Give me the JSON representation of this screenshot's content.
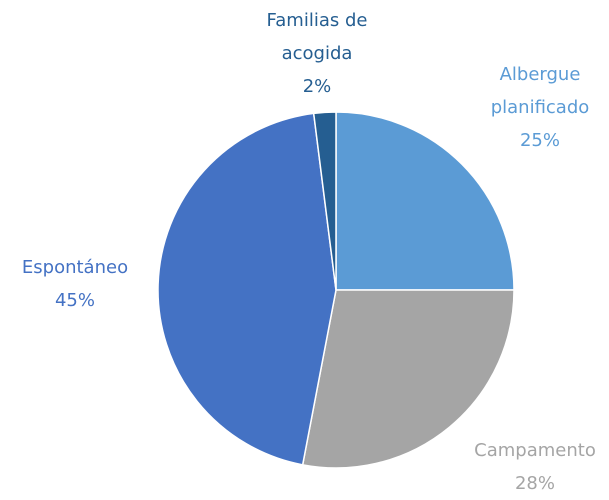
{
  "chart_data": {
    "type": "pie",
    "categories": [
      "Albergue planificado",
      "Campamento",
      "Espontáneo",
      "Familias de acogida"
    ],
    "values": [
      25,
      28,
      45,
      2
    ],
    "value_labels": [
      "25%",
      "28%",
      "45%",
      "2%"
    ],
    "colors": [
      "#5b9bd5",
      "#a5a5a5",
      "#4472c4",
      "#255e91"
    ]
  }
}
